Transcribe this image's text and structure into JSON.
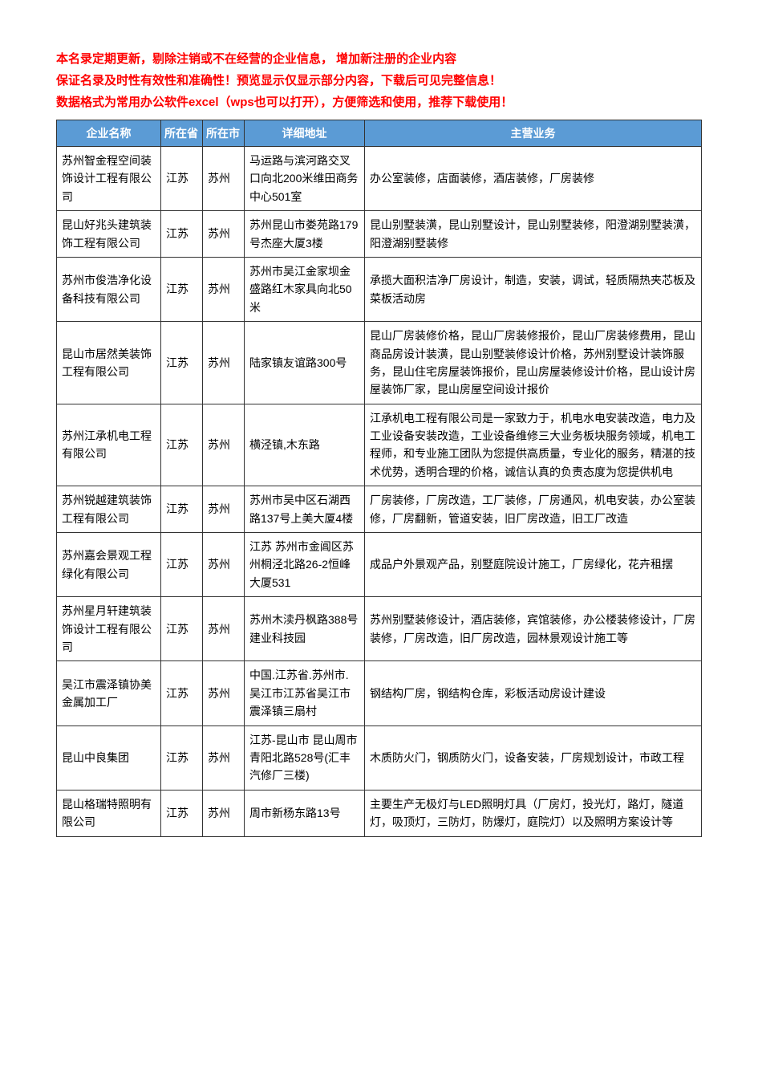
{
  "notice": {
    "color": "#ff0000",
    "lines": [
      "本名录定期更新，剔除注销或不在经营的企业信息， 增加新注册的企业内容",
      "保证名录及时性有效性和准确性！预览显示仅显示部分内容，下载后可见完整信息！",
      "数据格式为常用办公软件excel（wps也可以打开），方便筛选和使用，推荐下载使用！"
    ]
  },
  "table": {
    "header_bg": "#5b9bd5",
    "header_fg": "#ffffff",
    "border_color": "#333333",
    "columns": [
      "企业名称",
      "所在省",
      "所在市",
      "详细地址",
      "主营业务"
    ],
    "rows": [
      {
        "name": "苏州智金程空间装饰设计工程有限公司",
        "province": "江苏",
        "city": "苏州",
        "address": "马运路与滨河路交叉口向北200米维田商务中心501室",
        "business": "办公室装修，店面装修，酒店装修，厂房装修"
      },
      {
        "name": "昆山好兆头建筑装饰工程有限公司",
        "province": "江苏",
        "city": "苏州",
        "address": "苏州昆山市娄苑路179号杰座大厦3楼",
        "business": "昆山别墅装潢，昆山别墅设计，昆山别墅装修，阳澄湖别墅装潢，阳澄湖别墅装修"
      },
      {
        "name": "苏州市俊浩净化设备科技有限公司",
        "province": "江苏",
        "city": "苏州",
        "address": "苏州市吴江金家坝金盛路红木家具向北50米",
        "business": "承揽大面积洁净厂房设计，制造，安装，调试，轻质隔热夹芯板及菜板活动房"
      },
      {
        "name": "昆山市居然美装饰工程有限公司",
        "province": "江苏",
        "city": "苏州",
        "address": "陆家镇友谊路300号",
        "business": "昆山厂房装修价格，昆山厂房装修报价，昆山厂房装修费用，昆山商品房设计装潢，昆山别墅装修设计价格，苏州别墅设计装饰服务，昆山住宅房屋装饰报价，昆山房屋装修设计价格，昆山设计房屋装饰厂家，昆山房屋空间设计报价"
      },
      {
        "name": "苏州江承机电工程有限公司",
        "province": "江苏",
        "city": "苏州",
        "address": "横泾镇,木东路",
        "business": "江承机电工程有限公司是一家致力于，机电水电安装改造，电力及工业设备安装改造，工业设备维修三大业务板块服务领域，机电工程师，和专业施工团队为您提供高质量，专业化的服务，精湛的技术优势，透明合理的价格，诚信认真的负责态度为您提供机电"
      },
      {
        "name": "苏州锐越建筑装饰工程有限公司",
        "province": "江苏",
        "city": "苏州",
        "address": "苏州市吴中区石湖西路137号上美大厦4楼",
        "business": "厂房装修，厂房改造，工厂装修，厂房通风，机电安装，办公室装修，厂房翻新，管道安装，旧厂房改造，旧工厂改造"
      },
      {
        "name": "苏州嘉会景观工程绿化有限公司",
        "province": "江苏",
        "city": "苏州",
        "address": "江苏 苏州市金阊区苏州桐泾北路26-2恒峰大厦531",
        "business": "成品户外景观产品，别墅庭院设计施工，厂房绿化，花卉租摆"
      },
      {
        "name": "苏州星月轩建筑装饰设计工程有限公司",
        "province": "江苏",
        "city": "苏州",
        "address": "苏州木渎丹枫路388号建业科技园",
        "business": "苏州别墅装修设计，酒店装修，宾馆装修，办公楼装修设计，厂房装修，厂房改造，旧厂房改造，园林景观设计施工等"
      },
      {
        "name": "吴江市震泽镇协美金属加工厂",
        "province": "江苏",
        "city": "苏州",
        "address": "中国.江苏省.苏州市.吴江市江苏省吴江市震泽镇三扇村",
        "business": "钢结构厂房，钢结构仓库，彩板活动房设计建设"
      },
      {
        "name": "昆山中良集团",
        "province": "江苏",
        "city": "苏州",
        "address": "江苏-昆山市 昆山周市青阳北路528号(汇丰汽修厂三楼)",
        "business": "木质防火门，钢质防火门，设备安装，厂房规划设计，市政工程"
      },
      {
        "name": "昆山格瑞特照明有限公司",
        "province": "江苏",
        "city": "苏州",
        "address": "周市新杨东路13号",
        "business": "主要生产无极灯与LED照明灯具（厂房灯，投光灯，路灯，隧道灯，吸顶灯，三防灯，防爆灯，庭院灯）以及照明方案设计等"
      }
    ]
  }
}
